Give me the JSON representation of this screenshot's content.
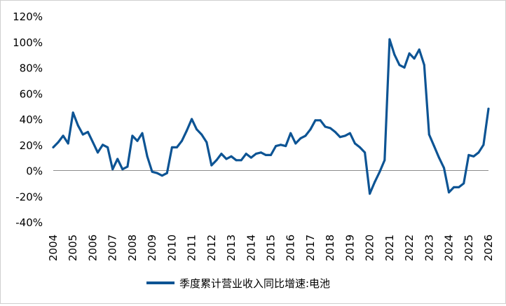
{
  "chart_data": {
    "type": "line",
    "title": "",
    "xlabel": "",
    "ylabel": "",
    "ylim": [
      -40,
      120
    ],
    "yticks": [
      "120%",
      "100%",
      "80%",
      "60%",
      "40%",
      "20%",
      "0%",
      "-20%",
      "-40%"
    ],
    "ytick_values": [
      120,
      100,
      80,
      60,
      40,
      20,
      0,
      -20,
      -40
    ],
    "xlim": [
      2004.0,
      2026.0
    ],
    "xticks": [
      "2004",
      "2005",
      "2006",
      "2007",
      "2008",
      "2009",
      "2010",
      "2011",
      "2012",
      "2013",
      "2014",
      "2015",
      "2016",
      "2017",
      "2018",
      "2019",
      "2020",
      "2021",
      "2022",
      "2023",
      "2024",
      "2025",
      "2026"
    ],
    "grid": false,
    "legend_position": "bottom",
    "colors": {
      "series": "#0d5494"
    },
    "series": [
      {
        "name": "季度累计营业收入同比增速:电池",
        "x": [
          2004.0,
          2004.25,
          2004.5,
          2004.75,
          2005.0,
          2005.25,
          2005.5,
          2005.75,
          2006.0,
          2006.25,
          2006.5,
          2006.75,
          2007.0,
          2007.25,
          2007.5,
          2007.75,
          2008.0,
          2008.25,
          2008.5,
          2008.75,
          2009.0,
          2009.25,
          2009.5,
          2009.75,
          2010.0,
          2010.25,
          2010.5,
          2010.75,
          2011.0,
          2011.25,
          2011.5,
          2011.75,
          2012.0,
          2012.25,
          2012.5,
          2012.75,
          2013.0,
          2013.25,
          2013.5,
          2013.75,
          2014.0,
          2014.25,
          2014.5,
          2014.75,
          2015.0,
          2015.25,
          2015.5,
          2015.75,
          2016.0,
          2016.25,
          2016.5,
          2016.75,
          2017.0,
          2017.25,
          2017.5,
          2017.75,
          2018.0,
          2018.25,
          2018.5,
          2018.75,
          2019.0,
          2019.25,
          2019.5,
          2019.75,
          2020.0,
          2020.25,
          2020.5,
          2020.75,
          2021.0,
          2021.25,
          2021.5,
          2021.75,
          2022.0,
          2022.25,
          2022.5,
          2022.75,
          2023.0,
          2023.25,
          2023.5,
          2023.75,
          2024.0,
          2024.25,
          2024.5,
          2024.75,
          2025.0,
          2025.25,
          2025.5,
          2025.75,
          2026.0
        ],
        "values": [
          18,
          22,
          27,
          21,
          45,
          35,
          28,
          30,
          22,
          14,
          20,
          18,
          1,
          9,
          1,
          3,
          27,
          23,
          29,
          11,
          -1,
          -2,
          -4,
          -2,
          18,
          18,
          23,
          31,
          40,
          32,
          28,
          22,
          4,
          8,
          13,
          9,
          11,
          8,
          8,
          13,
          10,
          13,
          14,
          12,
          12,
          19,
          20,
          19,
          29,
          21,
          25,
          27,
          32,
          39,
          39,
          34,
          33,
          30,
          26,
          27,
          29,
          21,
          18,
          14,
          -18,
          -9,
          -1,
          8,
          102,
          90,
          82,
          80,
          91,
          87,
          94,
          82,
          28,
          19,
          10,
          2,
          -17,
          -13,
          -13,
          -10,
          12,
          11,
          14,
          20,
          48
        ]
      }
    ]
  }
}
